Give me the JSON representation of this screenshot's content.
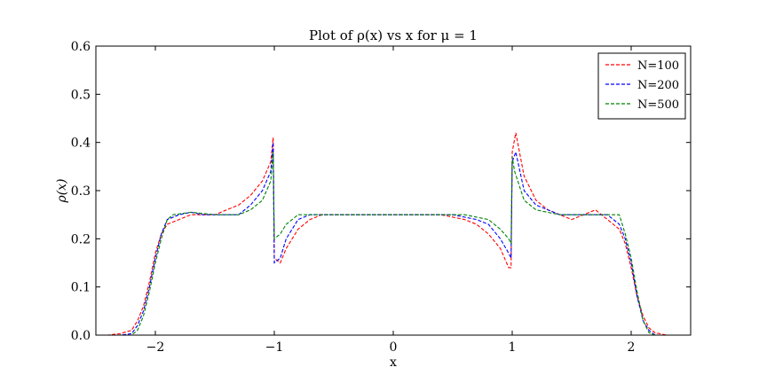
{
  "chart_data": {
    "type": "line",
    "title": "Plot of ρ(x) vs x for μ = 1",
    "xlabel": "x",
    "ylabel": "ρ(x)",
    "xlim": [
      -2.5,
      2.5
    ],
    "ylim": [
      0.0,
      0.6
    ],
    "xticks": [
      -2,
      -1,
      0,
      1,
      2
    ],
    "xtick_labels": [
      "−2",
      "−1",
      "0",
      "1",
      "2"
    ],
    "yticks": [
      0.0,
      0.1,
      0.2,
      0.3,
      0.4,
      0.5,
      0.6
    ],
    "ytick_labels": [
      "0.0",
      "0.1",
      "0.2",
      "0.3",
      "0.4",
      "0.5",
      "0.6"
    ],
    "grid": false,
    "legend_position": "top-right",
    "line_style": "dashed",
    "series": [
      {
        "name": "N=100",
        "color": "#ff0000",
        "points": [
          [
            -2.5,
            0.0
          ],
          [
            -2.4,
            0.0
          ],
          [
            -2.3,
            0.003
          ],
          [
            -2.2,
            0.01
          ],
          [
            -2.15,
            0.03
          ],
          [
            -2.1,
            0.06
          ],
          [
            -2.05,
            0.11
          ],
          [
            -2.0,
            0.17
          ],
          [
            -1.95,
            0.21
          ],
          [
            -1.9,
            0.23
          ],
          [
            -1.8,
            0.24
          ],
          [
            -1.7,
            0.25
          ],
          [
            -1.6,
            0.25
          ],
          [
            -1.5,
            0.25
          ],
          [
            -1.4,
            0.26
          ],
          [
            -1.3,
            0.27
          ],
          [
            -1.2,
            0.29
          ],
          [
            -1.1,
            0.32
          ],
          [
            -1.03,
            0.36
          ],
          [
            -1.01,
            0.41
          ],
          [
            -1.0,
            0.16
          ],
          [
            -0.95,
            0.15
          ],
          [
            -0.9,
            0.18
          ],
          [
            -0.8,
            0.22
          ],
          [
            -0.7,
            0.24
          ],
          [
            -0.6,
            0.25
          ],
          [
            -0.4,
            0.25
          ],
          [
            -0.2,
            0.25
          ],
          [
            0.0,
            0.25
          ],
          [
            0.2,
            0.25
          ],
          [
            0.4,
            0.25
          ],
          [
            0.6,
            0.24
          ],
          [
            0.7,
            0.23
          ],
          [
            0.8,
            0.21
          ],
          [
            0.9,
            0.18
          ],
          [
            0.97,
            0.14
          ],
          [
            0.99,
            0.14
          ],
          [
            1.0,
            0.38
          ],
          [
            1.03,
            0.42
          ],
          [
            1.1,
            0.33
          ],
          [
            1.2,
            0.28
          ],
          [
            1.3,
            0.26
          ],
          [
            1.4,
            0.25
          ],
          [
            1.5,
            0.24
          ],
          [
            1.6,
            0.25
          ],
          [
            1.7,
            0.26
          ],
          [
            1.8,
            0.24
          ],
          [
            1.9,
            0.22
          ],
          [
            1.95,
            0.19
          ],
          [
            2.0,
            0.14
          ],
          [
            2.05,
            0.08
          ],
          [
            2.1,
            0.04
          ],
          [
            2.15,
            0.015
          ],
          [
            2.2,
            0.005
          ],
          [
            2.3,
            0.0
          ],
          [
            2.5,
            0.0
          ]
        ]
      },
      {
        "name": "N=200",
        "color": "#0000ff",
        "points": [
          [
            -2.5,
            0.0
          ],
          [
            -2.3,
            0.0
          ],
          [
            -2.2,
            0.003
          ],
          [
            -2.15,
            0.02
          ],
          [
            -2.1,
            0.05
          ],
          [
            -2.05,
            0.1
          ],
          [
            -2.0,
            0.16
          ],
          [
            -1.95,
            0.21
          ],
          [
            -1.9,
            0.24
          ],
          [
            -1.8,
            0.25
          ],
          [
            -1.7,
            0.255
          ],
          [
            -1.6,
            0.25
          ],
          [
            -1.5,
            0.25
          ],
          [
            -1.4,
            0.25
          ],
          [
            -1.3,
            0.25
          ],
          [
            -1.2,
            0.27
          ],
          [
            -1.1,
            0.3
          ],
          [
            -1.03,
            0.34
          ],
          [
            -1.01,
            0.4
          ],
          [
            -1.0,
            0.15
          ],
          [
            -0.95,
            0.16
          ],
          [
            -0.9,
            0.2
          ],
          [
            -0.8,
            0.24
          ],
          [
            -0.7,
            0.25
          ],
          [
            -0.5,
            0.25
          ],
          [
            -0.3,
            0.25
          ],
          [
            0.0,
            0.25
          ],
          [
            0.3,
            0.25
          ],
          [
            0.5,
            0.25
          ],
          [
            0.7,
            0.24
          ],
          [
            0.8,
            0.23
          ],
          [
            0.9,
            0.2
          ],
          [
            0.97,
            0.17
          ],
          [
            0.99,
            0.16
          ],
          [
            1.0,
            0.36
          ],
          [
            1.03,
            0.38
          ],
          [
            1.1,
            0.3
          ],
          [
            1.2,
            0.27
          ],
          [
            1.3,
            0.26
          ],
          [
            1.4,
            0.25
          ],
          [
            1.5,
            0.25
          ],
          [
            1.6,
            0.25
          ],
          [
            1.7,
            0.25
          ],
          [
            1.8,
            0.25
          ],
          [
            1.9,
            0.23
          ],
          [
            1.95,
            0.2
          ],
          [
            2.0,
            0.15
          ],
          [
            2.05,
            0.08
          ],
          [
            2.1,
            0.03
          ],
          [
            2.15,
            0.01
          ],
          [
            2.2,
            0.0
          ],
          [
            2.5,
            0.0
          ]
        ]
      },
      {
        "name": "N=500",
        "color": "#008000",
        "points": [
          [
            -2.5,
            0.0
          ],
          [
            -2.2,
            0.0
          ],
          [
            -2.15,
            0.01
          ],
          [
            -2.1,
            0.04
          ],
          [
            -2.05,
            0.09
          ],
          [
            -2.0,
            0.15
          ],
          [
            -1.95,
            0.2
          ],
          [
            -1.9,
            0.24
          ],
          [
            -1.85,
            0.25
          ],
          [
            -1.7,
            0.255
          ],
          [
            -1.5,
            0.25
          ],
          [
            -1.3,
            0.25
          ],
          [
            -1.2,
            0.26
          ],
          [
            -1.1,
            0.28
          ],
          [
            -1.03,
            0.32
          ],
          [
            -1.01,
            0.38
          ],
          [
            -1.0,
            0.2
          ],
          [
            -0.95,
            0.21
          ],
          [
            -0.9,
            0.23
          ],
          [
            -0.8,
            0.25
          ],
          [
            -0.6,
            0.25
          ],
          [
            -0.3,
            0.25
          ],
          [
            0.0,
            0.25
          ],
          [
            0.3,
            0.25
          ],
          [
            0.6,
            0.25
          ],
          [
            0.8,
            0.24
          ],
          [
            0.9,
            0.22
          ],
          [
            0.97,
            0.2
          ],
          [
            0.99,
            0.19
          ],
          [
            1.0,
            0.37
          ],
          [
            1.02,
            0.34
          ],
          [
            1.1,
            0.28
          ],
          [
            1.2,
            0.26
          ],
          [
            1.4,
            0.25
          ],
          [
            1.6,
            0.25
          ],
          [
            1.8,
            0.25
          ],
          [
            1.9,
            0.25
          ],
          [
            1.95,
            0.21
          ],
          [
            2.0,
            0.16
          ],
          [
            2.05,
            0.09
          ],
          [
            2.1,
            0.03
          ],
          [
            2.15,
            0.005
          ],
          [
            2.2,
            0.0
          ],
          [
            2.5,
            0.0
          ]
        ]
      }
    ]
  }
}
